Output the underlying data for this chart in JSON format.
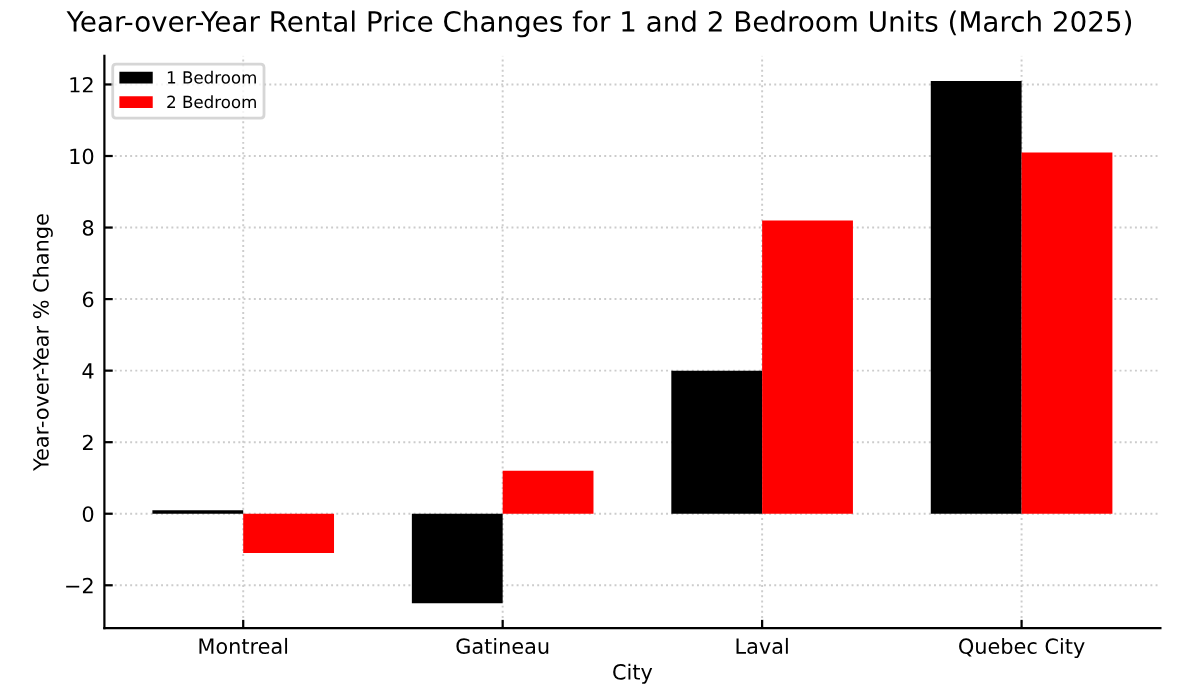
{
  "chart_data": {
    "type": "bar",
    "title": "Year-over-Year Rental Price Changes for 1 and 2 Bedroom Units (March 2025)",
    "xlabel": "City",
    "ylabel": "Year-over-Year % Change",
    "categories": [
      "Montreal",
      "Gatineau",
      "Laval",
      "Quebec City"
    ],
    "series": [
      {
        "name": "1 Bedroom",
        "color": "#000000",
        "values": [
          0.1,
          -2.5,
          4.0,
          12.1
        ]
      },
      {
        "name": "2 Bedroom",
        "color": "#ff0000",
        "values": [
          -1.1,
          1.2,
          8.2,
          10.1
        ]
      }
    ],
    "ylim": [
      -3.2,
      12.8
    ],
    "yticks": [
      {
        "value": -2,
        "label": "−2"
      },
      0,
      2,
      4,
      6,
      8,
      10,
      12
    ],
    "grid": true,
    "legend": "top left"
  }
}
